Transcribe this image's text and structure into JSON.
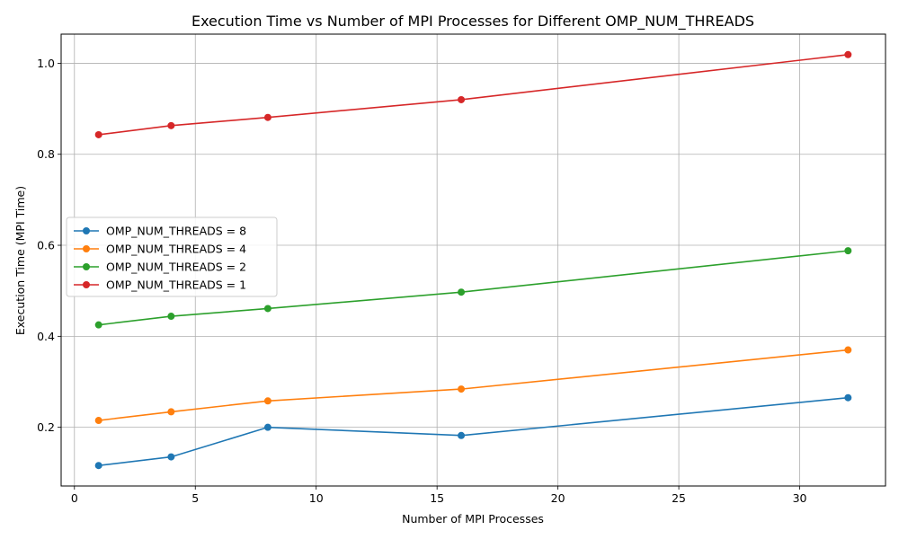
{
  "chart_data": {
    "type": "line",
    "title": "Execution Time vs Number of MPI Processes for Different OMP_NUM_THREADS",
    "xlabel": "Number of MPI Processes",
    "ylabel": "Execution Time (MPI Time)",
    "xlim": [
      -0.55,
      33.55
    ],
    "ylim": [
      0.071,
      1.064
    ],
    "xticks": [
      0,
      5,
      10,
      15,
      20,
      25,
      30
    ],
    "yticks": [
      0.2,
      0.4,
      0.6,
      0.8,
      1.0
    ],
    "ytick_labels": [
      "0.2",
      "0.4",
      "0.6",
      "0.8",
      "1.0"
    ],
    "grid": true,
    "legend_position": "center-left",
    "x": [
      1,
      4,
      8,
      16,
      32
    ],
    "series": [
      {
        "name": "OMP_NUM_THREADS = 8",
        "color": "#1f77b4",
        "values": [
          0.116,
          0.135,
          0.2,
          0.182,
          0.265
        ]
      },
      {
        "name": "OMP_NUM_THREADS = 4",
        "color": "#ff7f0e",
        "values": [
          0.215,
          0.234,
          0.258,
          0.284,
          0.37
        ]
      },
      {
        "name": "OMP_NUM_THREADS = 2",
        "color": "#2ca02c",
        "values": [
          0.425,
          0.444,
          0.461,
          0.497,
          0.588
        ]
      },
      {
        "name": "OMP_NUM_THREADS = 1",
        "color": "#d62728",
        "values": [
          0.843,
          0.863,
          0.881,
          0.92,
          1.019
        ]
      }
    ]
  }
}
